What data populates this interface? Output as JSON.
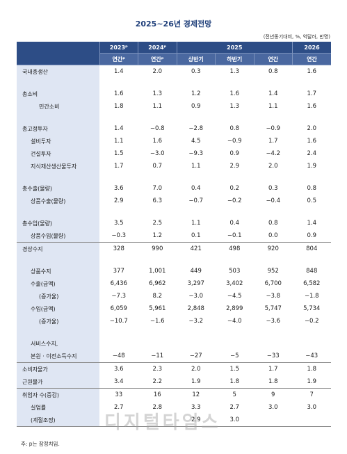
{
  "title": "2025~26년 경제전망",
  "unit_note": "(전년동기대비, %, 억달러, 만명)",
  "header": {
    "years": [
      "2023ᴾ",
      "2024ᴾ",
      "2025",
      "2026"
    ],
    "periods": [
      "연간ᴾ",
      "연간ᴾ",
      "상반기",
      "하반기",
      "연간",
      "연간"
    ]
  },
  "rows": [
    {
      "label": "국내총생산",
      "values": [
        "1.4",
        "2.0",
        "0.3",
        "1.3",
        "0.8",
        "1.6"
      ]
    },
    {
      "label": "총소비",
      "values": [
        "1.6",
        "1.3",
        "1.2",
        "1.6",
        "1.4",
        "1.7"
      ]
    },
    {
      "label": "민간소비",
      "values": [
        "1.8",
        "1.1",
        "0.9",
        "1.3",
        "1.1",
        "1.6"
      ]
    },
    {
      "label": "총고정투자",
      "values": [
        "1.4",
        "−0.8",
        "−2.8",
        "0.8",
        "−0.9",
        "2.0"
      ]
    },
    {
      "label": "설비투자",
      "values": [
        "1.1",
        "1.6",
        "4.5",
        "−0.9",
        "1.7",
        "1.6"
      ]
    },
    {
      "label": "건설투자",
      "values": [
        "1.5",
        "−3.0",
        "−9.3",
        "0.9",
        "−4.2",
        "2.4"
      ]
    },
    {
      "label": "지식재산생산물투자",
      "values": [
        "1.7",
        "0.7",
        "1.1",
        "2.9",
        "2.0",
        "1.9"
      ]
    },
    {
      "label": "총수출(물량)",
      "values": [
        "3.6",
        "7.0",
        "0.4",
        "0.2",
        "0.3",
        "0.8"
      ]
    },
    {
      "label": "상품수출(물량)",
      "values": [
        "2.9",
        "6.3",
        "−0.7",
        "−0.2",
        "−0.4",
        "0.5"
      ]
    },
    {
      "label": "총수입(물량)",
      "values": [
        "3.5",
        "2.5",
        "1.1",
        "0.4",
        "0.8",
        "1.4"
      ]
    },
    {
      "label": "상품수입(물량)",
      "values": [
        "−0.3",
        "1.2",
        "0.1",
        "−0.1",
        "0.0",
        "0.9"
      ]
    },
    {
      "label": "경상수지",
      "values": [
        "328",
        "990",
        "421",
        "498",
        "920",
        "804"
      ]
    },
    {
      "label": "상품수지",
      "values": [
        "377",
        "1,001",
        "449",
        "503",
        "952",
        "848"
      ]
    },
    {
      "label": "수출(금액)",
      "values": [
        "6,436",
        "6,962",
        "3,297",
        "3,402",
        "6,700",
        "6,582"
      ]
    },
    {
      "label": "(증가율)",
      "values": [
        "−7.3",
        "8.2",
        "−3.0",
        "−4.5",
        "−3.8",
        "−1.8"
      ]
    },
    {
      "label": "수입(금액)",
      "values": [
        "6,059",
        "5,961",
        "2,848",
        "2,899",
        "5,747",
        "5,734"
      ]
    },
    {
      "label": "(증가율)",
      "values": [
        "−10.7",
        "−1.6",
        "−3.2",
        "−4.0",
        "−3.6",
        "−0.2"
      ]
    },
    {
      "label": "서비스수지,",
      "values": [
        "",
        "",
        "",
        "",
        "",
        ""
      ]
    },
    {
      "label": "본원 · 이전소득수지",
      "values": [
        "−48",
        "−11",
        "−27",
        "−5",
        "−33",
        "−43"
      ]
    },
    {
      "label": "소비자물가",
      "values": [
        "3.6",
        "2.3",
        "2.0",
        "1.5",
        "1.7",
        "1.8"
      ]
    },
    {
      "label": "근원물가",
      "values": [
        "3.4",
        "2.2",
        "1.9",
        "1.8",
        "1.8",
        "1.9"
      ]
    },
    {
      "label": "취업자 수(증감)",
      "values": [
        "33",
        "16",
        "12",
        "5",
        "9",
        "7"
      ]
    },
    {
      "label": "실업률",
      "values": [
        "2.7",
        "2.8",
        "3.3",
        "2.7",
        "3.0",
        "3.0"
      ]
    },
    {
      "label": "(계절조정)",
      "values": [
        "",
        "",
        "2.9",
        "3.0",
        "",
        ""
      ]
    }
  ],
  "footnote": "주: p는 잠정치임.",
  "watermark": "디지털타임스"
}
